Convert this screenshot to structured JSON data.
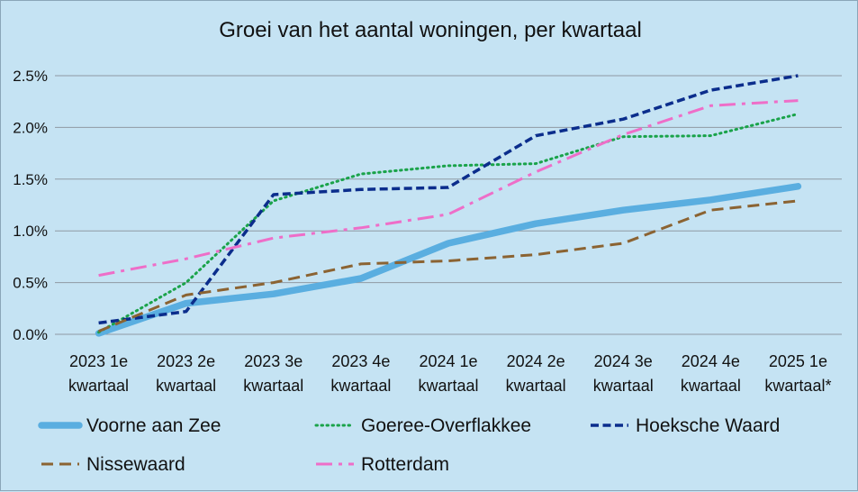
{
  "chart_data": {
    "type": "line",
    "title": "Groei van het aantal woningen, per kwartaal",
    "xlabel": "",
    "ylabel": "",
    "categories": [
      [
        "2023 1e",
        "kwartaal"
      ],
      [
        "2023 2e",
        "kwartaal"
      ],
      [
        "2023 3e",
        "kwartaal"
      ],
      [
        "2023 4e",
        "kwartaal"
      ],
      [
        "2024 1e",
        "kwartaal"
      ],
      [
        "2024 2e",
        "kwartaal"
      ],
      [
        "2024 3e",
        "kwartaal"
      ],
      [
        "2024 4e",
        "kwartaal"
      ],
      [
        "2025 1e",
        "kwartaal*"
      ]
    ],
    "ylim": [
      0,
      0.025
    ],
    "yticks": [
      0,
      0.005,
      0.01,
      0.015,
      0.02,
      0.025
    ],
    "ytick_labels": [
      "0.0%",
      "0.5%",
      "1.0%",
      "1.5%",
      "2.0%",
      "2.5%"
    ],
    "grid": true,
    "legend_position": "bottom",
    "series": [
      {
        "name": "Voorne aan Zee",
        "color": "#5aaee0",
        "dash": "solid",
        "values": [
          0.0001,
          0.003,
          0.0039,
          0.0054,
          0.0088,
          0.0107,
          0.012,
          0.013,
          0.0143
        ]
      },
      {
        "name": "Goeree-Overflakkee",
        "color": "#1aa34a",
        "dash": "dot",
        "values": [
          0.0002,
          0.005,
          0.0129,
          0.0155,
          0.0163,
          0.0165,
          0.0191,
          0.0192,
          0.0213
        ]
      },
      {
        "name": "Hoeksche Waard",
        "color": "#0b2d8c",
        "dash": "dash",
        "values": [
          0.0011,
          0.0022,
          0.0135,
          0.014,
          0.0142,
          0.0192,
          0.0208,
          0.0236,
          0.025
        ]
      },
      {
        "name": "Nissewaard",
        "color": "#8b6332",
        "dash": "longdash",
        "values": [
          0.0003,
          0.0038,
          0.005,
          0.0068,
          0.0071,
          0.0077,
          0.0088,
          0.012,
          0.0129
        ]
      },
      {
        "name": "Rotterdam",
        "color": "#ee6ec8",
        "dash": "dashdot",
        "values": [
          0.0057,
          0.0073,
          0.0093,
          0.0103,
          0.0116,
          0.0157,
          0.0193,
          0.0221,
          0.0226
        ]
      }
    ]
  }
}
